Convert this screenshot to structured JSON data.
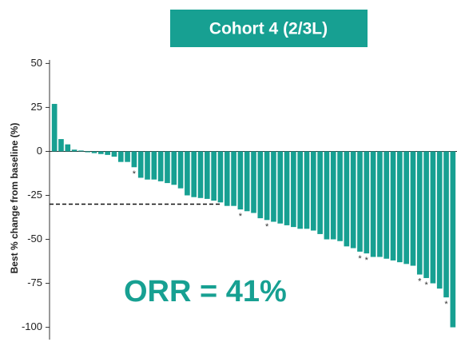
{
  "chart_data": {
    "type": "waterfall",
    "title": "Cohort 4 (2/3L)",
    "y_label": "Best % change from baseline (%)",
    "annotation": "ORR = 41%",
    "reference_line": -30,
    "color": "#17a092",
    "values": [
      27,
      7,
      4,
      1,
      0.5,
      -0.5,
      -1,
      -1.5,
      -2,
      -3,
      -6,
      -6,
      -9,
      -15,
      -16,
      -16,
      -17,
      -18,
      -19,
      -21,
      -25,
      -26,
      -26.5,
      -27,
      -28,
      -29,
      -31,
      -31,
      -33,
      -34,
      -35,
      -38,
      -39,
      -40,
      -41,
      -42,
      -43,
      -44,
      -44,
      -45,
      -47,
      -50,
      -50,
      -51,
      -54,
      -55,
      -57,
      -58,
      -60,
      -60,
      -61,
      -62,
      -63,
      -64,
      -65,
      -70,
      -72,
      -75,
      -78,
      -83,
      -100
    ],
    "notes": [
      null,
      null,
      null,
      null,
      null,
      null,
      null,
      null,
      null,
      null,
      null,
      null,
      "*",
      null,
      null,
      null,
      null,
      null,
      null,
      null,
      null,
      null,
      null,
      null,
      null,
      null,
      null,
      null,
      "*",
      null,
      null,
      null,
      "*",
      null,
      null,
      null,
      null,
      null,
      null,
      null,
      null,
      null,
      null,
      null,
      null,
      null,
      "*",
      "*",
      null,
      null,
      null,
      null,
      null,
      null,
      null,
      "*",
      "*",
      null,
      null,
      "*",
      null
    ],
    "ylim": [
      -107,
      52
    ],
    "yticks": [
      50,
      25,
      0,
      -25,
      -50,
      -75,
      -100
    ]
  }
}
